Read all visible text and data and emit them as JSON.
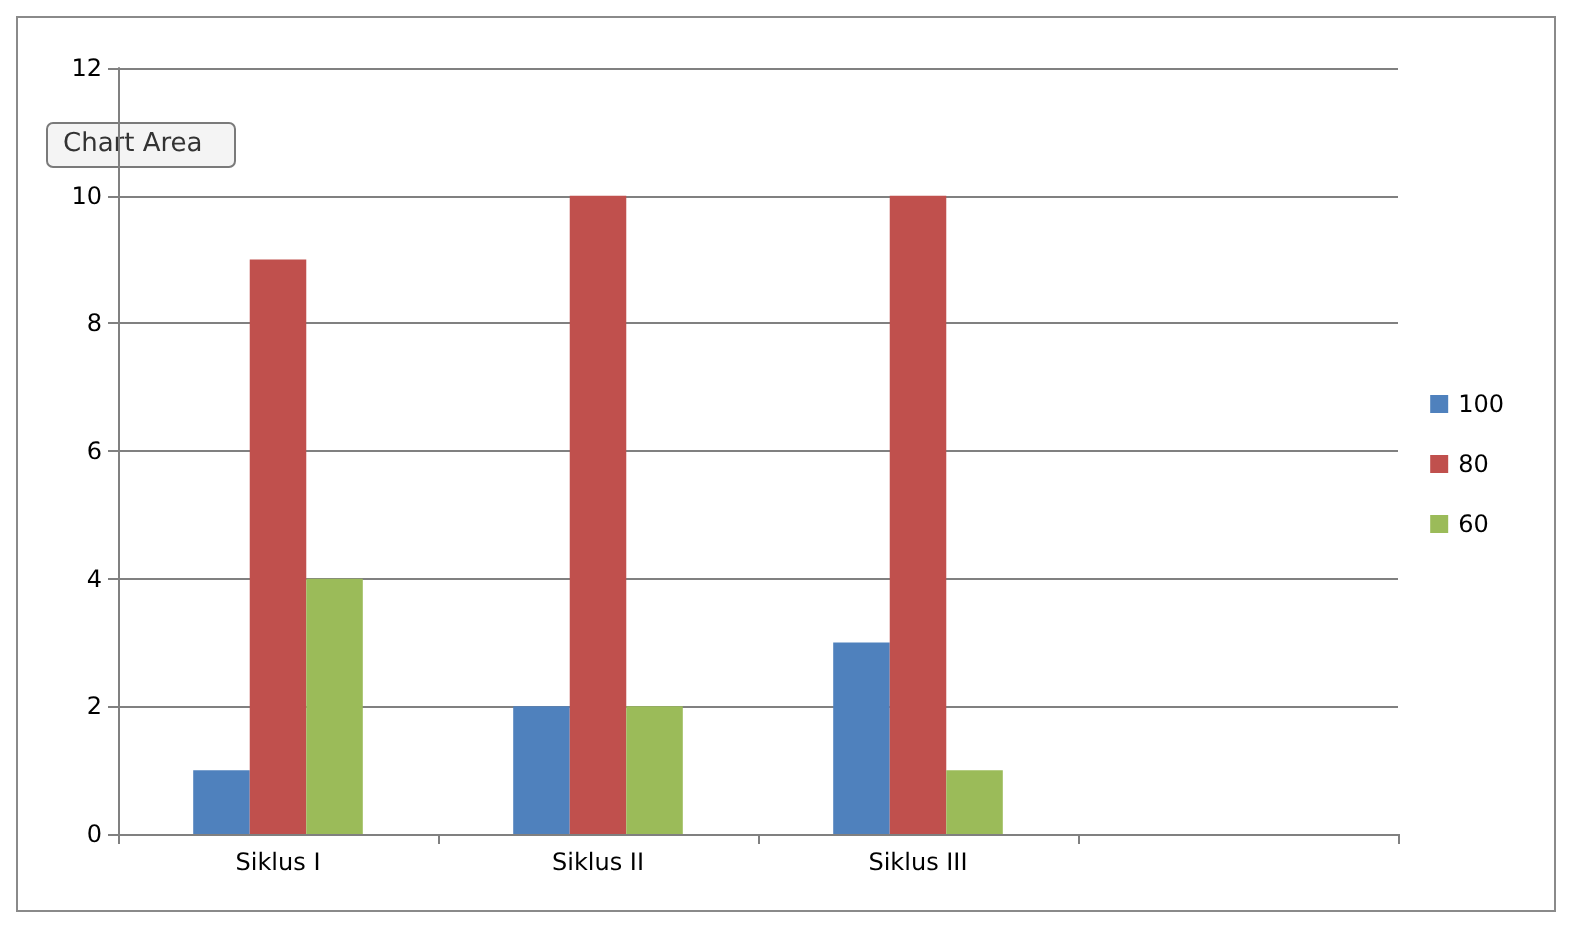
{
  "chart_data": {
    "type": "bar",
    "categories": [
      "Siklus I",
      "Siklus II",
      "Siklus III",
      null
    ],
    "series": [
      {
        "name": "100",
        "color": "#4f81bd",
        "values": [
          1,
          2,
          3,
          null
        ]
      },
      {
        "name": "80",
        "color": "#c0504d",
        "values": [
          9,
          10,
          10,
          null
        ]
      },
      {
        "name": "60",
        "color": "#9bbb59",
        "values": [
          4,
          2,
          1,
          null
        ]
      }
    ],
    "ylim": [
      0,
      12
    ],
    "yticks": [
      0,
      2,
      4,
      6,
      8,
      10,
      12
    ],
    "grid": "y",
    "legend": "right",
    "annotations": [
      "Chart Area"
    ]
  }
}
